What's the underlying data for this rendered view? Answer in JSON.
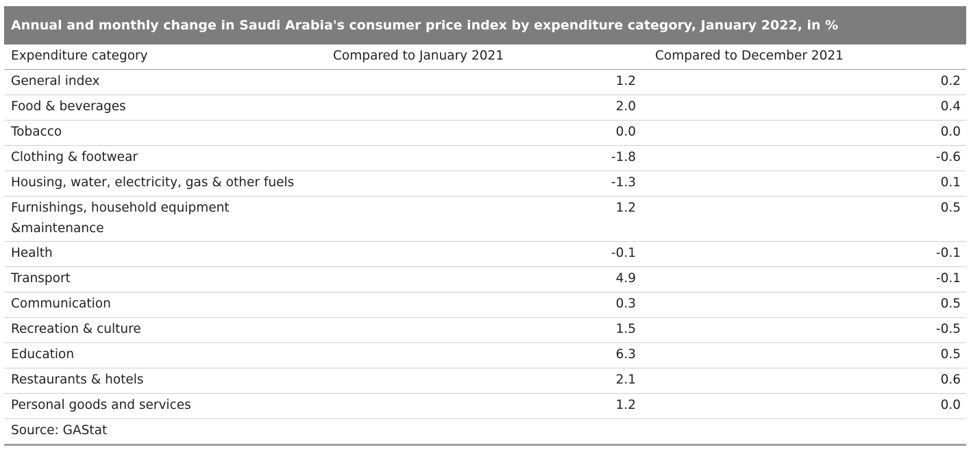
{
  "chart_data": {
    "type": "table",
    "title": "Annual and monthly change in Saudi Arabia's consumer price index by expenditure category, January 2022, in %",
    "columns": [
      "Expenditure category",
      "Compared to January 2021",
      "Compared to December 2021"
    ],
    "rows": [
      {
        "category": "General index",
        "yoy": "1.2",
        "mom": "0.2"
      },
      {
        "category": "Food & beverages",
        "yoy": "2.0",
        "mom": "0.4"
      },
      {
        "category": "Tobacco",
        "yoy": "0.0",
        "mom": "0.0"
      },
      {
        "category": "Clothing & footwear",
        "yoy": "-1.8",
        "mom": "-0.6"
      },
      {
        "category": "Housing, water, electricity, gas & other fuels",
        "yoy": "-1.3",
        "mom": "0.1"
      },
      {
        "category": "Furnishings, household equipment &maintenance",
        "yoy": "1.2",
        "mom": "0.5"
      },
      {
        "category": "Health",
        "yoy": "-0.1",
        "mom": "-0.1"
      },
      {
        "category": "Transport",
        "yoy": "4.9",
        "mom": "-0.1"
      },
      {
        "category": "Communication",
        "yoy": "0.3",
        "mom": "0.5"
      },
      {
        "category": "Recreation & culture",
        "yoy": "1.5",
        "mom": "-0.5"
      },
      {
        "category": "Education",
        "yoy": "6.3",
        "mom": "0.5"
      },
      {
        "category": "Restaurants & hotels",
        "yoy": "2.1",
        "mom": "0.6"
      },
      {
        "category": "Personal goods and services",
        "yoy": "1.2",
        "mom": "0.0"
      }
    ],
    "source": "Source: GAStat"
  },
  "colors": {
    "title_bar": "#7d7d7d",
    "title_text": "#ffffff",
    "row_rule": "#cfcfcf"
  }
}
